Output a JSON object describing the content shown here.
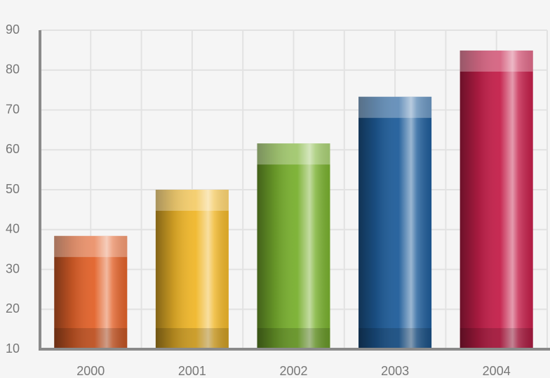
{
  "chart_data": {
    "type": "bar",
    "categories": [
      "2000",
      "2001",
      "2002",
      "2003",
      "2004"
    ],
    "values": [
      38.4,
      50,
      61.6,
      73.3,
      84.9
    ],
    "colors": [
      "#e2622a",
      "#f0b72a",
      "#79b02f",
      "#1f5d9a",
      "#c41f4a"
    ],
    "ylim": [
      10,
      90
    ],
    "yticks": [
      10,
      20,
      30,
      40,
      50,
      60,
      70,
      80,
      90
    ],
    "grid": true
  }
}
